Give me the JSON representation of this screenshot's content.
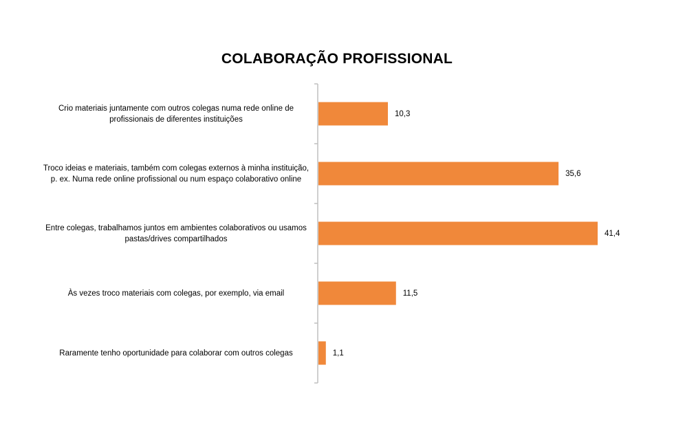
{
  "chart_data": {
    "type": "bar",
    "orientation": "horizontal",
    "title": "COLABORAÇÃO PROFISSIONAL",
    "categories": [
      "Crio materiais juntamente com outros colegas numa rede online de profissionais de diferentes instituições",
      "Troco ideias e materiais, também com colegas externos à minha instituição, p. ex. Numa rede online profissional ou num espaço colaborativo online",
      "Entre colegas, trabalhamos juntos em ambientes colaborativos ou usamos pastas/drives compartilhados",
      "Às vezes troco materiais com colegas, por exemplo, via email",
      "Raramente tenho oportunidade para colaborar com outros colegas"
    ],
    "values": [
      10.3,
      35.6,
      41.4,
      11.5,
      1.1
    ],
    "value_labels": [
      "10,3",
      "35,6",
      "41,4",
      "11,5",
      "1,1"
    ],
    "xlim": [
      0,
      41.4
    ],
    "bar_color": "#F0883A",
    "axis_color": "#BFBFBF",
    "grid": false,
    "legend": "none"
  }
}
